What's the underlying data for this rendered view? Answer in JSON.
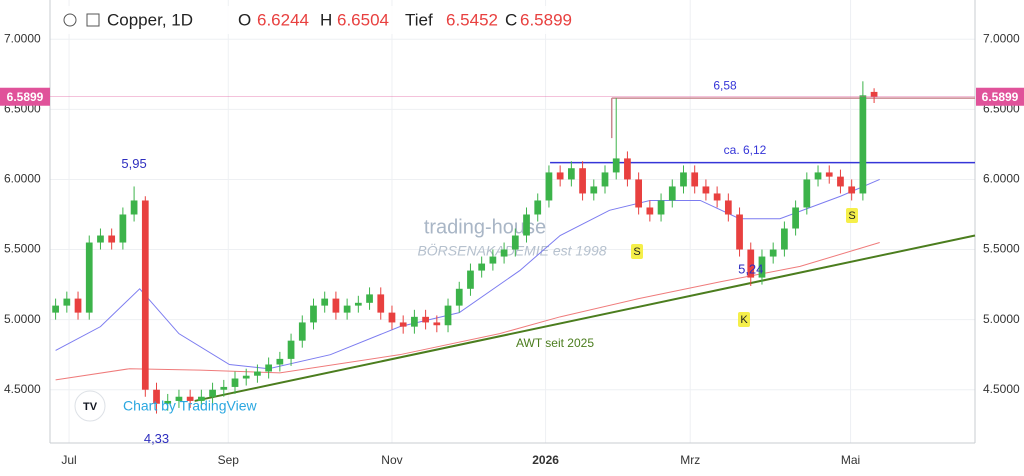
{
  "chart_data": {
    "type": "candlestick",
    "title": "Copper, 1D",
    "ohlc_labels": [
      "O",
      "H",
      "Tief",
      "C"
    ],
    "watermark": [
      "trading-house",
      "BÖRSENAKADEMIE est 1998"
    ],
    "attribution": "Chart by TradingView",
    "xlim": [
      -0.5,
      82
    ],
    "xticks": [
      {
        "value": 1.2,
        "label": "Jul"
      },
      {
        "value": 15.4,
        "label": "Sep"
      },
      {
        "value": 30.0,
        "label": "Nov"
      },
      {
        "value": 43.7,
        "label": "2026"
      },
      {
        "value": 56.6,
        "label": "Mrz"
      },
      {
        "value": 70.9,
        "label": "Mai"
      }
    ],
    "ylim": [
      4.12,
      7.28
    ],
    "yticks": [
      {
        "value": 4.5,
        "label": "4.5000"
      },
      {
        "value": 5.0,
        "label": "5.0000"
      },
      {
        "value": 5.5,
        "label": "5.5000"
      },
      {
        "value": 6.0,
        "label": "6.0000"
      },
      {
        "value": 6.5,
        "label": "6.5000"
      },
      {
        "value": 7.0,
        "label": "7.0000"
      }
    ],
    "grid": true,
    "up_color": "#3cb34a",
    "down_color": "#e8403f",
    "open": [
      5.05,
      5.1,
      5.15,
      5.05,
      5.55,
      5.6,
      5.55,
      5.75,
      5.85,
      4.5,
      4.4,
      4.42,
      4.45,
      4.42,
      4.45,
      4.5,
      4.52,
      4.58,
      4.6,
      4.63,
      4.68,
      4.72,
      4.85,
      4.98,
      5.1,
      5.15,
      5.05,
      5.1,
      5.12,
      5.18,
      5.05,
      4.98,
      4.95,
      5.02,
      4.98,
      4.96,
      5.1,
      5.22,
      5.35,
      5.4,
      5.45,
      5.5,
      5.6,
      5.75,
      5.85,
      6.05,
      6.0,
      6.08,
      5.9,
      5.95,
      6.05,
      6.15,
      6.0,
      5.8,
      5.75,
      5.85,
      5.95,
      6.05,
      5.95,
      5.9,
      5.85,
      5.75,
      5.5,
      5.3,
      5.45,
      5.5,
      5.65,
      5.8,
      6.0,
      6.05,
      6.02,
      5.95,
      5.9,
      6.6244
    ],
    "high": [
      5.15,
      5.2,
      5.2,
      5.6,
      5.65,
      5.65,
      5.8,
      5.95,
      5.88,
      4.55,
      4.47,
      4.5,
      4.5,
      4.5,
      4.55,
      4.57,
      4.63,
      4.65,
      4.68,
      4.73,
      4.77,
      4.9,
      5.03,
      5.15,
      5.2,
      5.2,
      5.15,
      5.17,
      5.23,
      5.23,
      5.1,
      5.03,
      5.07,
      5.07,
      5.03,
      5.15,
      5.27,
      5.4,
      5.45,
      5.5,
      5.55,
      5.65,
      5.8,
      5.9,
      6.1,
      6.1,
      6.13,
      6.13,
      6.0,
      6.1,
      6.58,
      6.2,
      6.05,
      5.85,
      5.9,
      6.0,
      6.1,
      6.1,
      6.0,
      5.95,
      5.9,
      5.8,
      5.55,
      5.5,
      5.55,
      5.7,
      5.85,
      6.05,
      6.1,
      6.1,
      6.07,
      6.0,
      6.7,
      6.6504
    ],
    "low": [
      5.0,
      5.05,
      5.0,
      5.0,
      5.5,
      5.5,
      5.5,
      5.7,
      4.45,
      4.33,
      4.35,
      4.37,
      4.37,
      4.37,
      4.4,
      4.45,
      4.47,
      4.53,
      4.55,
      4.58,
      4.63,
      4.67,
      4.8,
      4.93,
      5.05,
      5.0,
      5.0,
      5.05,
      5.07,
      5.0,
      4.93,
      4.9,
      4.9,
      4.93,
      4.91,
      4.91,
      5.05,
      5.17,
      5.3,
      5.35,
      5.4,
      5.45,
      5.55,
      5.7,
      5.8,
      5.95,
      5.95,
      5.85,
      5.85,
      5.9,
      6.0,
      5.95,
      5.75,
      5.7,
      5.7,
      5.8,
      5.9,
      5.9,
      5.85,
      5.8,
      5.7,
      5.45,
      5.24,
      5.25,
      5.4,
      5.45,
      5.6,
      5.75,
      5.95,
      5.97,
      5.9,
      5.85,
      5.85,
      6.5452
    ],
    "close": [
      5.1,
      5.15,
      5.05,
      5.55,
      5.6,
      5.55,
      5.75,
      5.85,
      4.5,
      4.4,
      4.42,
      4.45,
      4.42,
      4.45,
      4.5,
      4.52,
      4.58,
      4.6,
      4.63,
      4.68,
      4.72,
      4.85,
      4.98,
      5.1,
      5.15,
      5.05,
      5.1,
      5.12,
      5.18,
      5.05,
      4.98,
      4.95,
      5.02,
      4.98,
      4.96,
      5.1,
      5.22,
      5.35,
      5.4,
      5.45,
      5.5,
      5.6,
      5.75,
      5.85,
      6.05,
      6.0,
      6.08,
      5.9,
      5.95,
      6.05,
      6.15,
      6.0,
      5.8,
      5.75,
      5.85,
      5.95,
      6.05,
      5.95,
      5.9,
      5.85,
      5.75,
      5.5,
      5.3,
      5.45,
      5.5,
      5.65,
      5.8,
      6.0,
      6.05,
      6.02,
      5.95,
      5.9,
      6.6,
      6.5899
    ],
    "close_color": "#e0529a",
    "lines": [
      {
        "color": "#7c7cf0",
        "x": [
          0,
          4,
          7.5,
          11,
          15.5,
          19,
          24.5,
          30.7,
          36,
          41.4,
          45,
          49.4,
          53,
          57.5,
          61,
          64.6,
          70,
          73.5
        ],
        "values": [
          4.78,
          4.95,
          5.22,
          4.9,
          4.68,
          4.65,
          4.75,
          4.95,
          5.05,
          5.35,
          5.6,
          5.78,
          5.85,
          5.85,
          5.72,
          5.72,
          5.88,
          6.0
        ]
      },
      {
        "color": "#ef7b7b",
        "x": [
          0,
          6.6,
          12.9,
          20,
          30.7,
          39.6,
          45,
          52,
          59.3,
          66.4,
          73.5
        ],
        "values": [
          4.57,
          4.65,
          4.64,
          4.62,
          4.75,
          4.9,
          5.02,
          5.15,
          5.27,
          5.38,
          5.55
        ]
      }
    ],
    "levels": [
      {
        "label": "6,58",
        "value": 6.58,
        "from": 49.6,
        "color": "#c98890"
      },
      {
        "label": "ca. 6,12",
        "value": 6.12,
        "from": 44.1,
        "color": "#3535d8"
      }
    ],
    "trendline": {
      "label": "AWT seit 2025",
      "x": [
        12.4,
        82
      ],
      "values": [
        4.42,
        5.6
      ],
      "color": "#4b7d1e"
    },
    "annotations": [
      {
        "text": "5,95",
        "x": 7,
        "value": 5.95
      },
      {
        "text": "4,33",
        "x": 9,
        "value": 4.33
      },
      {
        "text": "5,24",
        "x": 62,
        "value": 5.24
      }
    ],
    "badges": [
      "S",
      "K",
      "S"
    ]
  }
}
